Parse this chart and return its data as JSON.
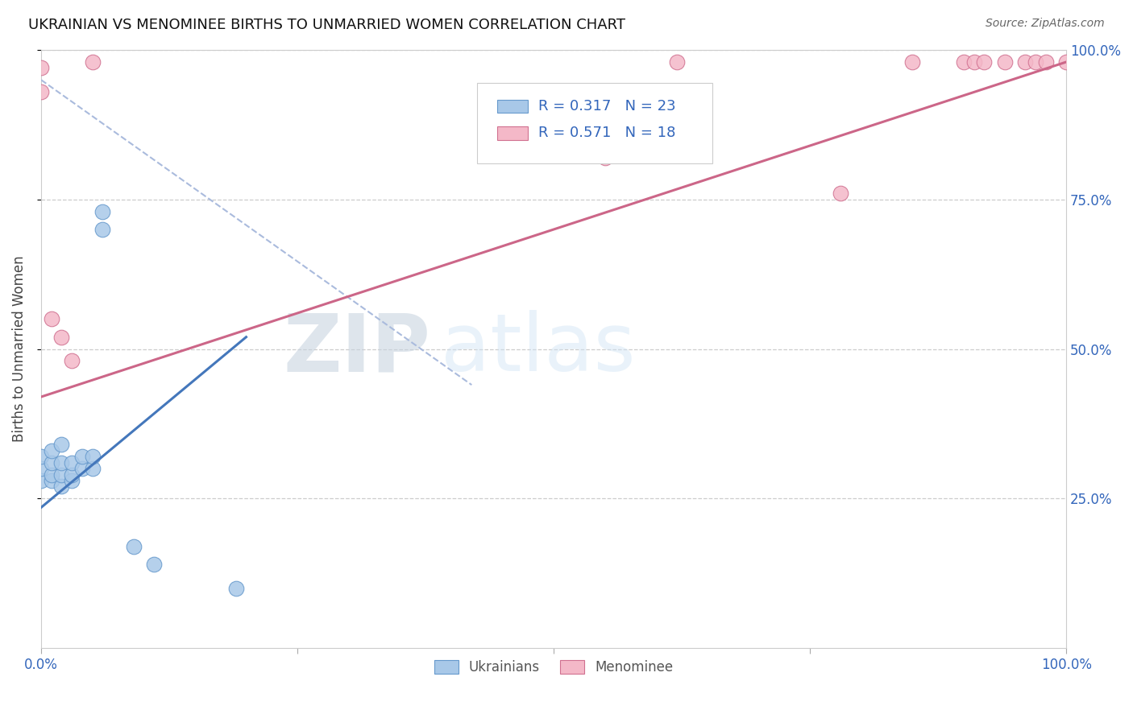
{
  "title": "UKRAINIAN VS MENOMINEE BIRTHS TO UNMARRIED WOMEN CORRELATION CHART",
  "source": "Source: ZipAtlas.com",
  "ylabel": "Births to Unmarried Women",
  "background_color": "#ffffff",
  "watermark_zip": "ZIP",
  "watermark_atlas": "atlas",
  "blue_color": "#a8c8e8",
  "blue_edge_color": "#6699cc",
  "pink_color": "#f4b8c8",
  "pink_edge_color": "#d07090",
  "blue_line_color": "#4477bb",
  "pink_line_color": "#cc6688",
  "dashed_line_color": "#aabbdd",
  "legend_R_blue": "R = 0.317",
  "legend_N_blue": "N = 23",
  "legend_R_pink": "R = 0.571",
  "legend_N_pink": "N = 18",
  "legend_label_blue": "Ukrainians",
  "legend_label_pink": "Menominee",
  "xlim": [
    0.0,
    1.0
  ],
  "ylim": [
    0.0,
    1.0
  ],
  "blue_x": [
    0.0,
    0.0,
    0.0,
    0.01,
    0.01,
    0.01,
    0.01,
    0.02,
    0.02,
    0.02,
    0.02,
    0.03,
    0.03,
    0.03,
    0.04,
    0.04,
    0.05,
    0.05,
    0.06,
    0.06,
    0.09,
    0.11,
    0.19
  ],
  "blue_y": [
    0.28,
    0.3,
    0.32,
    0.28,
    0.29,
    0.31,
    0.33,
    0.27,
    0.29,
    0.31,
    0.34,
    0.28,
    0.29,
    0.31,
    0.3,
    0.32,
    0.3,
    0.32,
    0.7,
    0.73,
    0.17,
    0.14,
    0.1
  ],
  "pink_x": [
    0.0,
    0.0,
    0.01,
    0.02,
    0.03,
    0.05,
    0.55,
    0.62,
    0.78,
    0.85,
    0.9,
    0.91,
    0.92,
    0.94,
    0.96,
    0.97,
    0.98,
    1.0
  ],
  "pink_y": [
    0.93,
    0.97,
    0.55,
    0.52,
    0.48,
    0.98,
    0.82,
    0.98,
    0.76,
    0.98,
    0.98,
    0.98,
    0.98,
    0.98,
    0.98,
    0.98,
    0.98,
    0.98
  ],
  "pink_trendline_x": [
    0.0,
    1.0
  ],
  "pink_trendline_y": [
    0.42,
    0.98
  ],
  "blue_trendline_x": [
    0.0,
    0.2
  ],
  "blue_trendline_y": [
    0.235,
    0.52
  ],
  "diag_line_x": [
    0.0,
    0.42
  ],
  "diag_line_y": [
    0.95,
    0.44
  ]
}
